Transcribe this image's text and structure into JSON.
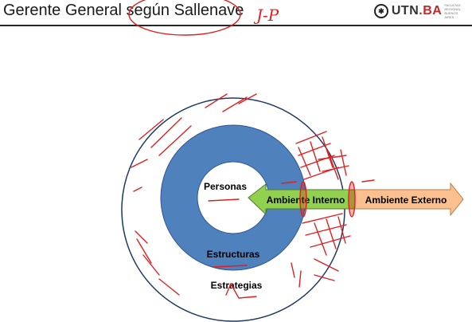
{
  "slide": {
    "title": "Gerente General según Sallenave",
    "handwritten_note": "J-P"
  },
  "logo": {
    "text": "UTN",
    "suffix": ".BA",
    "subtitle_lines": [
      "FACULTAD",
      "REGIONAL",
      "BUENOS AIRES"
    ]
  },
  "diagram": {
    "inner_label": "Personas",
    "middle_label": "Estructuras",
    "outer_label": "Estrategias",
    "arrow_internal_label": "Ambiente Interno",
    "arrow_external_label": "Ambiente Externo"
  },
  "colors": {
    "ring_blue": "#4f81bd",
    "arrow_green": "#92d050",
    "arrow_orange": "#fac090",
    "ink_red": "#e02020",
    "outline_navy": "#1f3864"
  }
}
